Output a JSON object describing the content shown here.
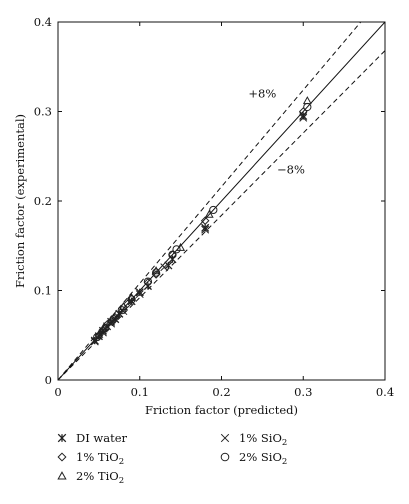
{
  "chart_data": {
    "type": "scatter",
    "xlabel": "Friction factor (predicted)",
    "ylabel": "Friction factor (experimental)",
    "xlim": [
      0,
      0.4
    ],
    "ylim": [
      0,
      0.4
    ],
    "x_ticks": [
      0,
      0.1,
      0.2,
      0.3,
      0.4
    ],
    "y_ticks": [
      0,
      0.1,
      0.2,
      0.3,
      0.4
    ],
    "x_tick_labels": [
      "0",
      "0.1",
      "0.2",
      "0.3",
      "0.4"
    ],
    "y_tick_labels": [
      "0",
      "0.1",
      "0.2",
      "0.3",
      "0.4"
    ],
    "grid": false,
    "legend_position": "below",
    "reference_lines": [
      {
        "label": "",
        "slope": 1.0,
        "style": "solid"
      },
      {
        "label": "+8%",
        "slope": 1.08,
        "style": "dashed"
      },
      {
        "label": "−8%",
        "slope": 0.92,
        "style": "dashed"
      }
    ],
    "annotations": [
      {
        "text": "+8%",
        "x": 0.25,
        "y": 0.32
      },
      {
        "text": "−8%",
        "x": 0.285,
        "y": 0.235
      }
    ],
    "series": [
      {
        "name": "DI water",
        "marker": "asterisk",
        "points": [
          [
            0.045,
            0.044
          ],
          [
            0.05,
            0.049
          ],
          [
            0.055,
            0.055
          ],
          [
            0.06,
            0.06
          ],
          [
            0.065,
            0.065
          ],
          [
            0.07,
            0.068
          ],
          [
            0.075,
            0.074
          ],
          [
            0.09,
            0.088
          ],
          [
            0.1,
            0.098
          ],
          [
            0.11,
            0.105
          ],
          [
            0.135,
            0.128
          ],
          [
            0.14,
            0.135
          ],
          [
            0.18,
            0.17
          ],
          [
            0.3,
            0.295
          ]
        ]
      },
      {
        "name": "1% TiO₂",
        "marker": "diamond",
        "points": [
          [
            0.05,
            0.05
          ],
          [
            0.055,
            0.056
          ],
          [
            0.06,
            0.062
          ],
          [
            0.07,
            0.07
          ],
          [
            0.085,
            0.085
          ],
          [
            0.09,
            0.091
          ],
          [
            0.11,
            0.109
          ],
          [
            0.12,
            0.118
          ],
          [
            0.14,
            0.14
          ],
          [
            0.18,
            0.178
          ],
          [
            0.3,
            0.3
          ]
        ]
      },
      {
        "name": "2% TiO₂",
        "marker": "triangle",
        "points": [
          [
            0.05,
            0.051
          ],
          [
            0.055,
            0.057
          ],
          [
            0.065,
            0.067
          ],
          [
            0.08,
            0.082
          ],
          [
            0.09,
            0.092
          ],
          [
            0.12,
            0.122
          ],
          [
            0.15,
            0.148
          ],
          [
            0.185,
            0.185
          ],
          [
            0.305,
            0.312
          ]
        ]
      },
      {
        "name": "1% SiO₂",
        "marker": "x",
        "points": [
          [
            0.045,
            0.043
          ],
          [
            0.055,
            0.053
          ],
          [
            0.065,
            0.063
          ],
          [
            0.08,
            0.077
          ],
          [
            0.1,
            0.096
          ],
          [
            0.13,
            0.126
          ],
          [
            0.18,
            0.168
          ],
          [
            0.3,
            0.293
          ]
        ]
      },
      {
        "name": "2% SiO₂",
        "marker": "circle",
        "points": [
          [
            0.048,
            0.048
          ],
          [
            0.058,
            0.058
          ],
          [
            0.068,
            0.068
          ],
          [
            0.078,
            0.078
          ],
          [
            0.09,
            0.09
          ],
          [
            0.11,
            0.11
          ],
          [
            0.12,
            0.12
          ],
          [
            0.14,
            0.14
          ],
          [
            0.145,
            0.146
          ],
          [
            0.19,
            0.19
          ],
          [
            0.305,
            0.305
          ]
        ]
      }
    ]
  },
  "legend": {
    "entries": [
      {
        "name_main": "DI water",
        "name_sub": "",
        "marker": "asterisk"
      },
      {
        "name_main": "1% TiO",
        "name_sub": "2",
        "marker": "diamond"
      },
      {
        "name_main": "2% TiO",
        "name_sub": "2",
        "marker": "triangle"
      },
      {
        "name_main": "1% SiO",
        "name_sub": "2",
        "marker": "x"
      },
      {
        "name_main": "2% SiO",
        "name_sub": "2",
        "marker": "circle"
      }
    ]
  },
  "colors": {
    "axis": "#111111",
    "marker": "#222222",
    "background": "#ffffff"
  }
}
